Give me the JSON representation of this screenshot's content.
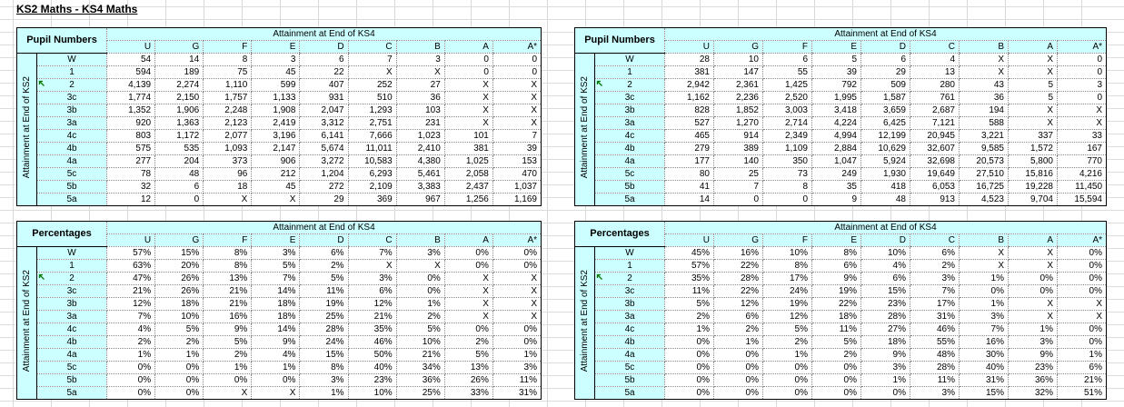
{
  "page_title": "KS2 Maths - KS4 Maths",
  "labels": {
    "ks4_header": "Attainment at End of KS4",
    "ks2_header": "Attainment at End of KS2"
  },
  "colors": {
    "header_bg": "#ccffff",
    "table_border": "#000000",
    "dotted_border": "#8a8a8a",
    "gridline": "#d8d8d8",
    "marker_green": "#067806"
  },
  "col_headers": [
    "U",
    "G",
    "F",
    "E",
    "D",
    "C",
    "B",
    "A",
    "A*"
  ],
  "row_labels": [
    "W",
    "1",
    "2",
    "3c",
    "3b",
    "3a",
    "4c",
    "4b",
    "4a",
    "5c",
    "5b",
    "5a"
  ],
  "marker_row": "2",
  "tables": [
    {
      "corner_label": "Pupil Numbers",
      "rows": [
        [
          "54",
          "14",
          "8",
          "3",
          "6",
          "7",
          "3",
          "0",
          "0"
        ],
        [
          "594",
          "189",
          "75",
          "45",
          "22",
          "X",
          "X",
          "0",
          "0"
        ],
        [
          "4,139",
          "2,274",
          "1,110",
          "599",
          "407",
          "252",
          "27",
          "X",
          "X"
        ],
        [
          "1,774",
          "2,150",
          "1,757",
          "1,133",
          "931",
          "510",
          "36",
          "X",
          "X"
        ],
        [
          "1,352",
          "1,906",
          "2,248",
          "1,908",
          "2,047",
          "1,293",
          "103",
          "X",
          "X"
        ],
        [
          "920",
          "1,363",
          "2,123",
          "2,419",
          "3,312",
          "2,751",
          "231",
          "X",
          "X"
        ],
        [
          "803",
          "1,172",
          "2,077",
          "3,196",
          "6,141",
          "7,666",
          "1,023",
          "101",
          "7"
        ],
        [
          "575",
          "535",
          "1,093",
          "2,147",
          "5,674",
          "11,011",
          "2,410",
          "381",
          "39"
        ],
        [
          "277",
          "204",
          "373",
          "906",
          "3,272",
          "10,583",
          "4,380",
          "1,025",
          "153"
        ],
        [
          "78",
          "48",
          "96",
          "212",
          "1,204",
          "6,293",
          "5,461",
          "2,058",
          "470"
        ],
        [
          "32",
          "6",
          "18",
          "45",
          "272",
          "2,109",
          "3,383",
          "2,437",
          "1,037"
        ],
        [
          "12",
          "0",
          "X",
          "X",
          "29",
          "369",
          "967",
          "1,256",
          "1,169"
        ]
      ]
    },
    {
      "corner_label": "Percentages",
      "rows": [
        [
          "57%",
          "15%",
          "8%",
          "3%",
          "6%",
          "7%",
          "3%",
          "0%",
          "0%"
        ],
        [
          "63%",
          "20%",
          "8%",
          "5%",
          "2%",
          "X",
          "X",
          "0%",
          "0%"
        ],
        [
          "47%",
          "26%",
          "13%",
          "7%",
          "5%",
          "3%",
          "0%",
          "X",
          "X"
        ],
        [
          "21%",
          "26%",
          "21%",
          "14%",
          "11%",
          "6%",
          "0%",
          "X",
          "X"
        ],
        [
          "12%",
          "18%",
          "21%",
          "18%",
          "19%",
          "12%",
          "1%",
          "X",
          "X"
        ],
        [
          "7%",
          "10%",
          "16%",
          "18%",
          "25%",
          "21%",
          "2%",
          "X",
          "X"
        ],
        [
          "4%",
          "5%",
          "9%",
          "14%",
          "28%",
          "35%",
          "5%",
          "0%",
          "0%"
        ],
        [
          "2%",
          "2%",
          "5%",
          "9%",
          "24%",
          "46%",
          "10%",
          "2%",
          "0%"
        ],
        [
          "1%",
          "1%",
          "2%",
          "4%",
          "15%",
          "50%",
          "21%",
          "5%",
          "1%"
        ],
        [
          "0%",
          "0%",
          "1%",
          "1%",
          "8%",
          "40%",
          "34%",
          "13%",
          "3%"
        ],
        [
          "0%",
          "0%",
          "0%",
          "0%",
          "3%",
          "23%",
          "36%",
          "26%",
          "11%"
        ],
        [
          "0%",
          "0%",
          "X",
          "X",
          "1%",
          "10%",
          "25%",
          "33%",
          "31%"
        ]
      ]
    },
    {
      "corner_label": "Pupil Numbers",
      "rows": [
        [
          "28",
          "10",
          "6",
          "5",
          "6",
          "4",
          "X",
          "X",
          "0"
        ],
        [
          "381",
          "147",
          "55",
          "39",
          "29",
          "13",
          "X",
          "X",
          "0"
        ],
        [
          "2,942",
          "2,361",
          "1,425",
          "792",
          "509",
          "280",
          "43",
          "5",
          "3"
        ],
        [
          "1,162",
          "2,236",
          "2,520",
          "1,995",
          "1,587",
          "761",
          "36",
          "5",
          "0"
        ],
        [
          "828",
          "1,852",
          "3,003",
          "3,418",
          "3,659",
          "2,687",
          "194",
          "X",
          "X"
        ],
        [
          "527",
          "1,270",
          "2,714",
          "4,224",
          "6,425",
          "7,121",
          "588",
          "X",
          "X"
        ],
        [
          "465",
          "914",
          "2,349",
          "4,994",
          "12,199",
          "20,945",
          "3,221",
          "337",
          "33"
        ],
        [
          "279",
          "389",
          "1,109",
          "2,884",
          "10,629",
          "32,607",
          "9,585",
          "1,572",
          "167"
        ],
        [
          "177",
          "140",
          "350",
          "1,047",
          "5,924",
          "32,698",
          "20,573",
          "5,800",
          "770"
        ],
        [
          "80",
          "25",
          "73",
          "249",
          "1,930",
          "19,649",
          "27,510",
          "15,816",
          "4,216"
        ],
        [
          "41",
          "7",
          "8",
          "35",
          "418",
          "6,053",
          "16,725",
          "19,228",
          "11,450"
        ],
        [
          "14",
          "0",
          "0",
          "9",
          "48",
          "913",
          "4,523",
          "9,704",
          "15,594"
        ]
      ]
    },
    {
      "corner_label": "Percentages",
      "rows": [
        [
          "45%",
          "16%",
          "10%",
          "8%",
          "10%",
          "6%",
          "X",
          "X",
          "0%"
        ],
        [
          "57%",
          "22%",
          "8%",
          "6%",
          "4%",
          "2%",
          "X",
          "X",
          "0%"
        ],
        [
          "35%",
          "28%",
          "17%",
          "9%",
          "6%",
          "3%",
          "1%",
          "0%",
          "0%"
        ],
        [
          "11%",
          "22%",
          "24%",
          "19%",
          "15%",
          "7%",
          "0%",
          "0%",
          "0%"
        ],
        [
          "5%",
          "12%",
          "19%",
          "22%",
          "23%",
          "17%",
          "1%",
          "X",
          "X"
        ],
        [
          "2%",
          "6%",
          "12%",
          "18%",
          "28%",
          "31%",
          "3%",
          "X",
          "X"
        ],
        [
          "1%",
          "2%",
          "5%",
          "11%",
          "27%",
          "46%",
          "7%",
          "1%",
          "0%"
        ],
        [
          "0%",
          "1%",
          "2%",
          "5%",
          "18%",
          "55%",
          "16%",
          "3%",
          "0%"
        ],
        [
          "0%",
          "0%",
          "1%",
          "2%",
          "9%",
          "48%",
          "30%",
          "9%",
          "1%"
        ],
        [
          "0%",
          "0%",
          "0%",
          "0%",
          "3%",
          "28%",
          "40%",
          "23%",
          "6%"
        ],
        [
          "0%",
          "0%",
          "0%",
          "0%",
          "1%",
          "11%",
          "31%",
          "36%",
          "21%"
        ],
        [
          "0%",
          "0%",
          "0%",
          "0%",
          "0%",
          "3%",
          "15%",
          "32%",
          "51%"
        ]
      ]
    }
  ]
}
